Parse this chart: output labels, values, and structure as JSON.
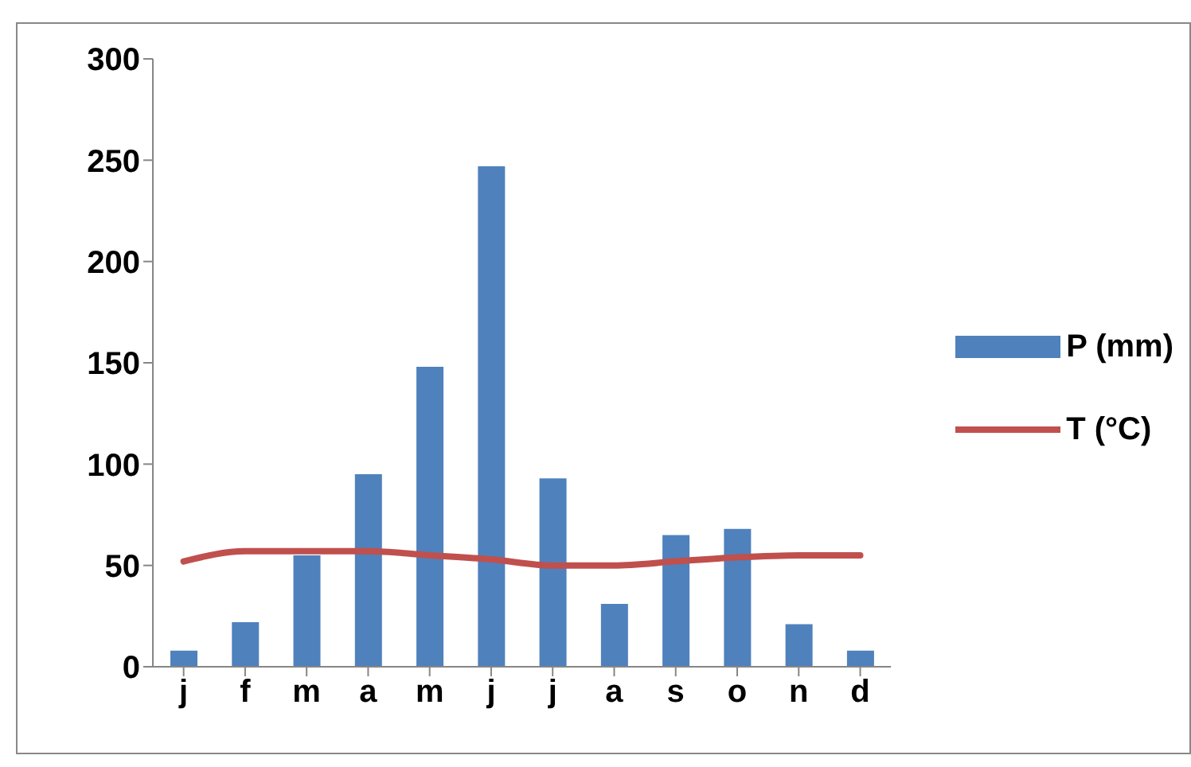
{
  "chart_data": {
    "type": "bar",
    "categories": [
      "j",
      "f",
      "m",
      "a",
      "m",
      "j",
      "j",
      "a",
      "s",
      "o",
      "n",
      "d"
    ],
    "series": [
      {
        "name": "P (mm)",
        "color": "#4f81bd",
        "values": [
          8,
          22,
          55,
          95,
          148,
          247,
          93,
          31,
          65,
          68,
          21,
          8
        ]
      },
      {
        "name": "T (°C)",
        "type": "line",
        "color": "#c0504d",
        "values": [
          52,
          57,
          57,
          57,
          55,
          53,
          50,
          50,
          52,
          54,
          55,
          55
        ]
      }
    ],
    "ylim": [
      0,
      300
    ],
    "yticks": [
      0,
      50,
      100,
      150,
      200,
      250,
      300
    ],
    "grid": false,
    "legend": "right",
    "marker": "none",
    "line_style": "solid"
  }
}
